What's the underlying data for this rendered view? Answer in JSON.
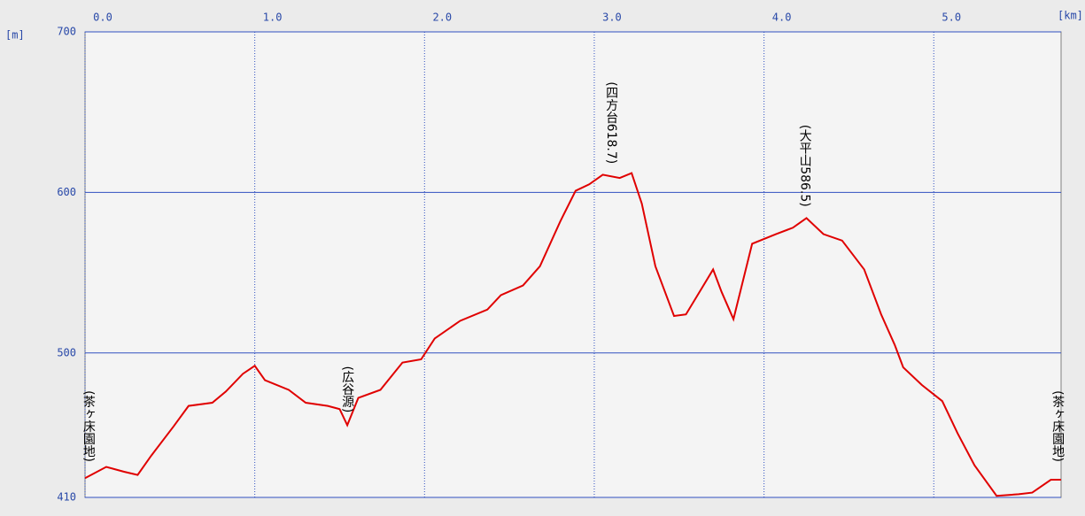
{
  "chart_data": {
    "type": "line",
    "x_unit": "[km]",
    "y_unit": "[m]",
    "xlim": [
      0,
      5.75
    ],
    "ylim": [
      410,
      700
    ],
    "xticks": [
      {
        "value": 0,
        "label": "0.0"
      },
      {
        "value": 1,
        "label": "1.0"
      },
      {
        "value": 2,
        "label": "2.0"
      },
      {
        "value": 3,
        "label": "3.0"
      },
      {
        "value": 4,
        "label": "4.0"
      },
      {
        "value": 5,
        "label": "5.0"
      }
    ],
    "yticks": [
      410,
      500,
      600,
      700
    ],
    "grid": true,
    "x": [
      0,
      0.125,
      0.23,
      0.31,
      0.39,
      0.52,
      0.61,
      0.75,
      0.83,
      0.93,
      1.0,
      1.06,
      1.2,
      1.3,
      1.43,
      1.5,
      1.545,
      1.61,
      1.74,
      1.87,
      1.98,
      2.06,
      2.21,
      2.37,
      2.45,
      2.58,
      2.68,
      2.8,
      2.89,
      2.97,
      3.05,
      3.15,
      3.22,
      3.28,
      3.36,
      3.47,
      3.54,
      3.62,
      3.7,
      3.75,
      3.82,
      3.93,
      4.07,
      4.17,
      4.25,
      4.35,
      4.46,
      4.59,
      4.69,
      4.77,
      4.82,
      4.93,
      5.05,
      5.14,
      5.24,
      5.37,
      5.5,
      5.58,
      5.69,
      5.75
    ],
    "series": [
      {
        "color": "#e00000",
        "values": [
          422,
          429,
          426,
          424,
          436,
          454,
          467,
          469,
          476,
          487,
          492,
          483,
          477,
          469,
          467,
          465,
          455,
          472,
          477,
          494,
          496,
          509,
          520,
          527,
          536,
          542,
          554,
          582,
          601,
          605,
          611,
          609,
          612,
          593,
          554,
          523,
          524,
          538,
          552,
          538,
          521,
          568,
          574,
          578,
          584,
          574,
          570,
          552,
          524,
          505,
          491,
          480,
          470,
          450,
          430,
          411,
          412,
          413,
          421,
          421
        ]
      }
    ],
    "annotations": [
      {
        "text": "(茶ヶ床園地)",
        "x": 0.02
      },
      {
        "text": "(広谷源)",
        "x": 1.545
      },
      {
        "text": "(四方台618.7)",
        "x": 3.1
      },
      {
        "text": "(大平山586.5)",
        "x": 4.24
      },
      {
        "text": "(茶ヶ床園地)",
        "x": 5.73
      }
    ]
  }
}
